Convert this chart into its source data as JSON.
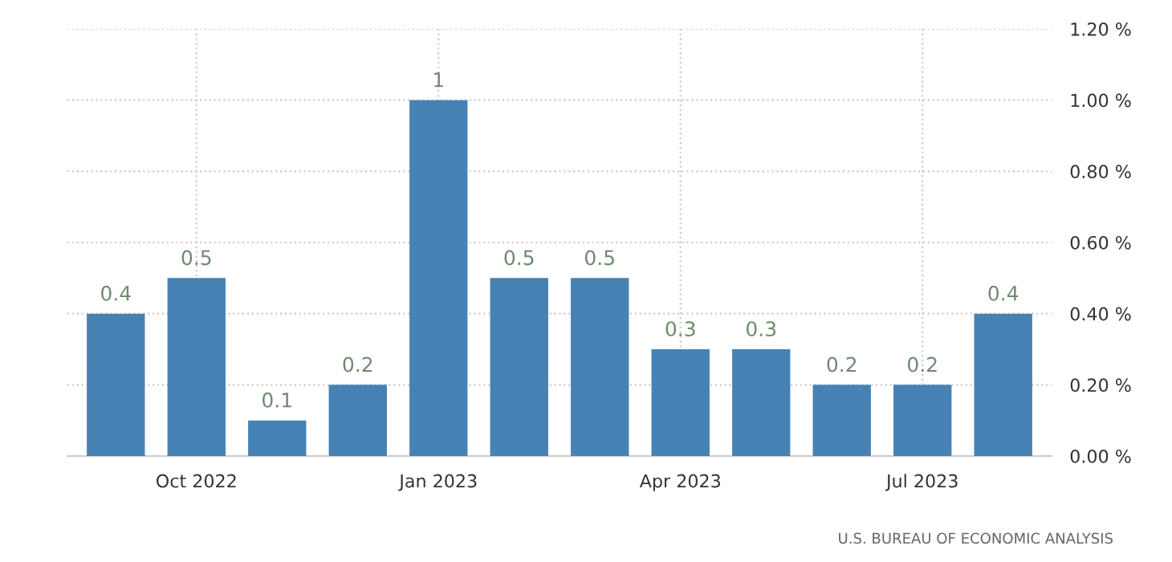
{
  "chart_data": {
    "type": "bar",
    "categories": [
      null,
      "Oct 2022",
      null,
      null,
      "Jan 2023",
      null,
      null,
      "Apr 2023",
      null,
      null,
      "Jul 2023",
      null
    ],
    "values": [
      0.4,
      0.5,
      0.1,
      0.2,
      1,
      0.5,
      0.5,
      0.3,
      0.3,
      0.2,
      0.2,
      0.4
    ],
    "color": "#4682b4",
    "data_labels": true,
    "ylim": [
      0,
      1.2
    ],
    "yticks": [
      {
        "value": 0,
        "label": "0.00 %"
      },
      {
        "value": 0.2,
        "label": "0.20 %"
      },
      {
        "value": 0.4,
        "label": "0.40 %"
      },
      {
        "value": 0.6,
        "label": "0.60 %"
      },
      {
        "value": 0.8,
        "label": "0.80 %"
      },
      {
        "value": 1.0,
        "label": "1.00 %"
      },
      {
        "value": 1.2,
        "label": "1.20 %"
      }
    ],
    "grid": true,
    "annotations": [
      "U.S. BUREAU OF ECONOMIC ANALYSIS"
    ]
  }
}
